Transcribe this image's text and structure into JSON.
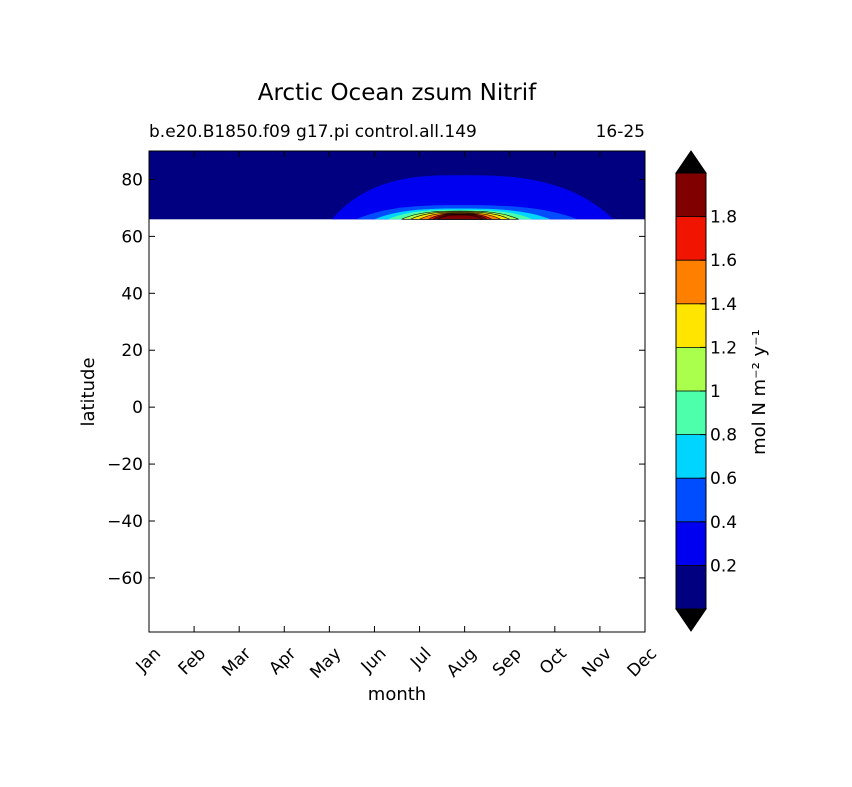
{
  "chart_data": {
    "type": "heatmap",
    "title": "Arctic Ocean zsum Nitrif",
    "subtitle_left": "b.e20.B1850.f09 g17.pi control.all.149",
    "subtitle_right": "16-25",
    "xlabel": "month",
    "ylabel": "latitude",
    "x_categories": [
      "Jan",
      "Feb",
      "Mar",
      "Apr",
      "May",
      "Jun",
      "Jul",
      "Aug",
      "Sep",
      "Oct",
      "Nov",
      "Dec"
    ],
    "ylim": [
      -79,
      90
    ],
    "y_ticks": [
      80,
      60,
      40,
      20,
      0,
      -20,
      -40,
      -60
    ],
    "y_tick_labels": [
      "80",
      "60",
      "40",
      "20",
      "0",
      "−20",
      "−40",
      "−60"
    ],
    "data_extent": {
      "lat_min": 66,
      "lat_max": 90
    },
    "colorbar": {
      "label": "mol N m⁻² y⁻¹",
      "levels": [
        0,
        0.2,
        0.4,
        0.6,
        0.8,
        1.0,
        1.2,
        1.4,
        1.6,
        1.8,
        2.0
      ],
      "tick_values": [
        0.2,
        0.4,
        0.6,
        0.8,
        1.0,
        1.2,
        1.4,
        1.6,
        1.8
      ],
      "tick_labels": [
        "0.2",
        "0.4",
        "0.6",
        "0.8",
        "1",
        "1.2",
        "1.4",
        "1.6",
        "1.8"
      ],
      "colors": [
        "#000080",
        "#0000f1",
        "#004dff",
        "#00d5ff",
        "#4dffaa",
        "#aaff4d",
        "#ffe500",
        "#ff8000",
        "#f11400",
        "#800000"
      ],
      "under_color": "#000000",
      "over_color": "#000000",
      "extend": "both"
    },
    "contour_bands": [
      {
        "level": 0.2,
        "m_start": 4.05,
        "m_end": 10.3,
        "m_peak": 6.9,
        "lat_bottom": 66,
        "lat_top": 81.5
      },
      {
        "level": 0.4,
        "m_start": 4.6,
        "m_end": 9.5,
        "m_peak": 6.9,
        "lat_bottom": 66,
        "lat_top": 71.0
      },
      {
        "level": 0.6,
        "m_start": 5.0,
        "m_end": 8.9,
        "m_peak": 6.9,
        "lat_bottom": 66,
        "lat_top": 69.8
      },
      {
        "level": 0.8,
        "m_start": 5.3,
        "m_end": 8.5,
        "m_peak": 6.9,
        "lat_bottom": 66,
        "lat_top": 69.3
      },
      {
        "level": 1.0,
        "m_start": 5.6,
        "m_end": 8.2,
        "m_peak": 6.9,
        "lat_bottom": 66,
        "lat_top": 68.9
      },
      {
        "level": 1.2,
        "m_start": 5.8,
        "m_end": 8.0,
        "m_peak": 6.9,
        "lat_bottom": 66,
        "lat_top": 68.6
      },
      {
        "level": 1.4,
        "m_start": 6.0,
        "m_end": 7.8,
        "m_peak": 6.9,
        "lat_bottom": 66,
        "lat_top": 68.3
      },
      {
        "level": 1.6,
        "m_start": 6.2,
        "m_end": 7.6,
        "m_peak": 6.9,
        "lat_bottom": 66,
        "lat_top": 68.0
      },
      {
        "level": 1.8,
        "m_start": 6.3,
        "m_end": 7.5,
        "m_peak": 6.9,
        "lat_bottom": 66,
        "lat_top": 67.8
      },
      {
        "level": 2.0,
        "m_start": 6.4,
        "m_end": 7.4,
        "m_peak": 6.9,
        "lat_bottom": 66,
        "lat_top": 67.5
      }
    ],
    "legend": "colorbar right",
    "grid": false
  }
}
